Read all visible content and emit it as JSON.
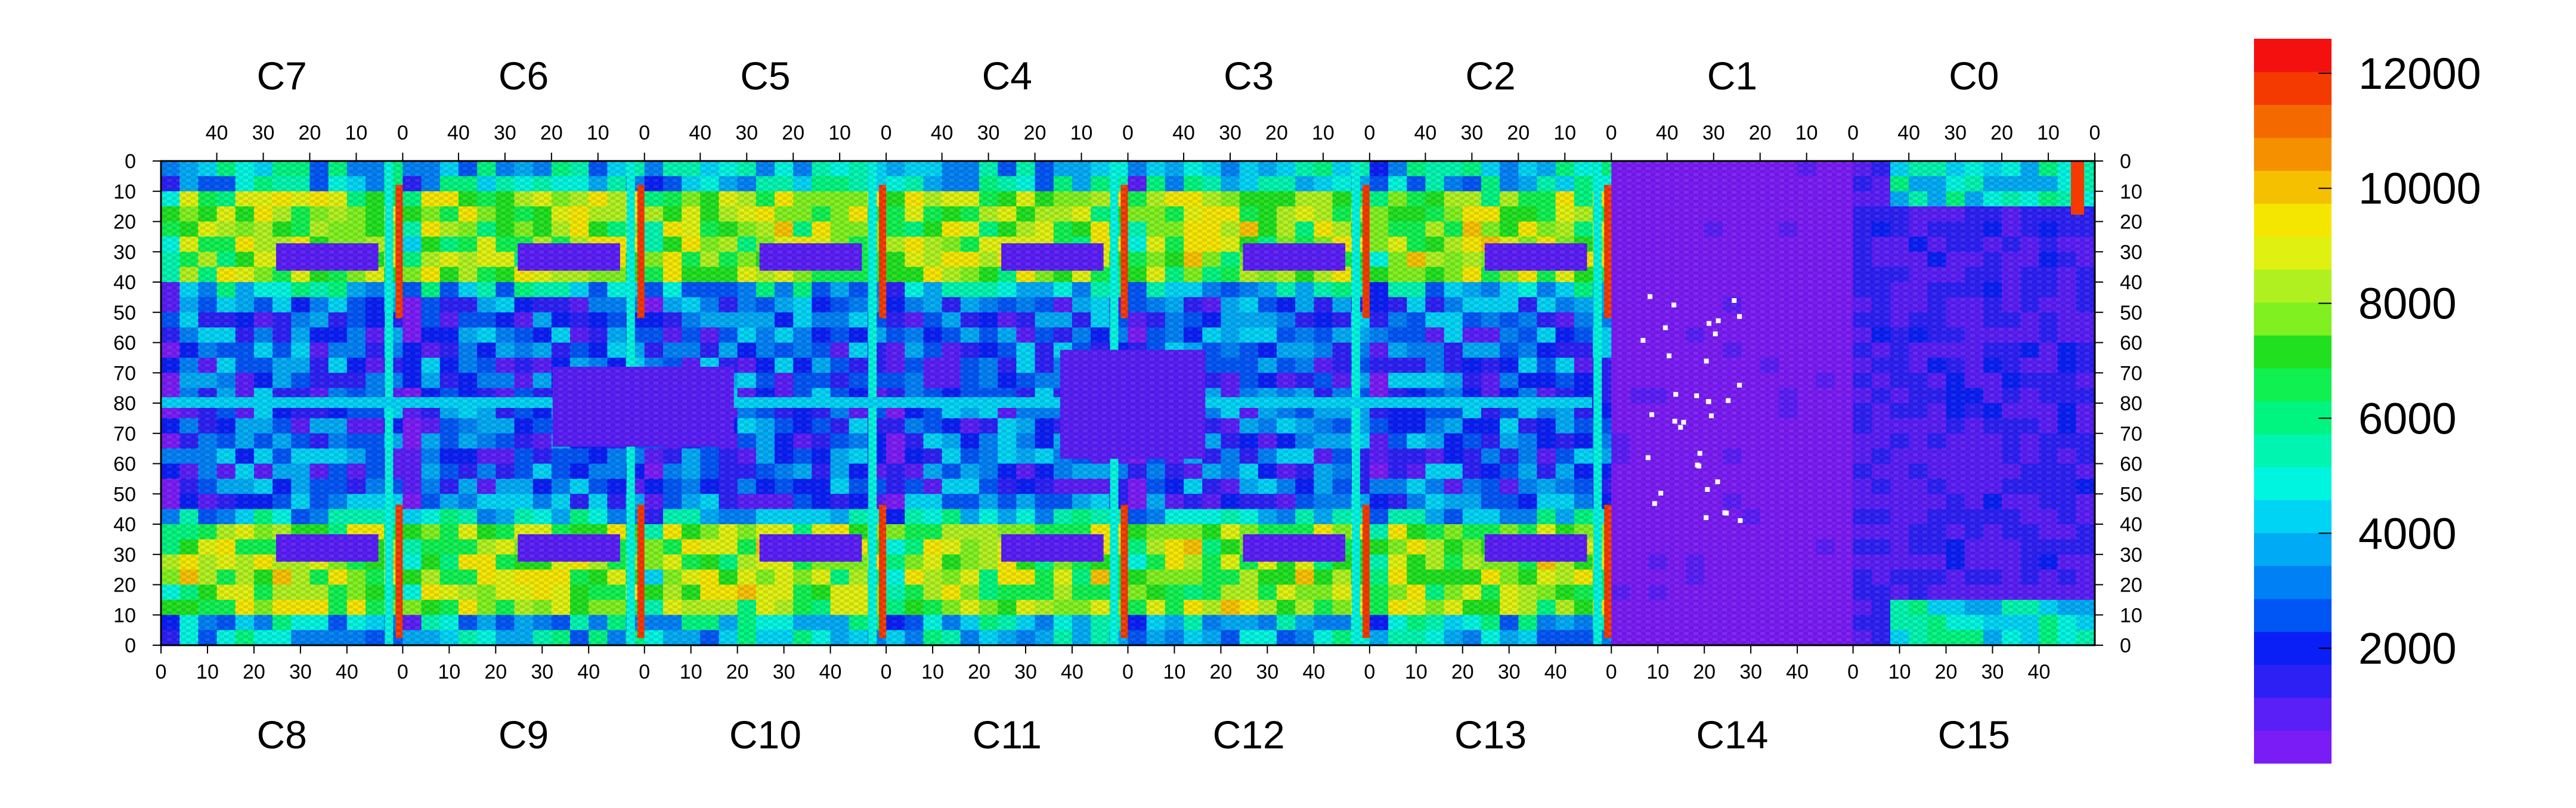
{
  "chart_data": {
    "type": "heatmap",
    "title": "",
    "xlabel": "",
    "ylabel": "",
    "top_chip_labels": [
      "C7",
      "C6",
      "C5",
      "C4",
      "C3",
      "C2",
      "C1",
      "C0"
    ],
    "bottom_chip_labels": [
      "C8",
      "C9",
      "C10",
      "C11",
      "C12",
      "C13",
      "C14",
      "C15"
    ],
    "top_x_tick_labels": [
      "40",
      "30",
      "20",
      "10",
      "0"
    ],
    "bottom_x_tick_labels": [
      "0",
      "10",
      "20",
      "30",
      "40"
    ],
    "y_tick_labels": [
      "0",
      "10",
      "20",
      "30",
      "40",
      "50",
      "60",
      "70",
      "80",
      "70",
      "60",
      "50",
      "40",
      "30",
      "20",
      "10",
      "0"
    ],
    "columns_per_chip": 52,
    "rows_per_half": 80,
    "colorbar": {
      "min": 0,
      "max": 12600,
      "tick_values": [
        2000,
        4000,
        6000,
        8000,
        10000,
        12000
      ],
      "tick_labels": [
        "2000",
        "4000",
        "6000",
        "8000",
        "10000",
        "12000"
      ],
      "colors": [
        "#7a1cf5",
        "#5a1ef7",
        "#2d20f5",
        "#0a1ff5",
        "#0055f5",
        "#0080f5",
        "#00aaf5",
        "#00d4f5",
        "#00f5e0",
        "#00f5b0",
        "#00f580",
        "#10f050",
        "#20e020",
        "#80f020",
        "#b0f020",
        "#e0f010",
        "#f5e600",
        "#f5c000",
        "#f59000",
        "#f56a00",
        "#f53a00",
        "#f51010"
      ]
    }
  }
}
